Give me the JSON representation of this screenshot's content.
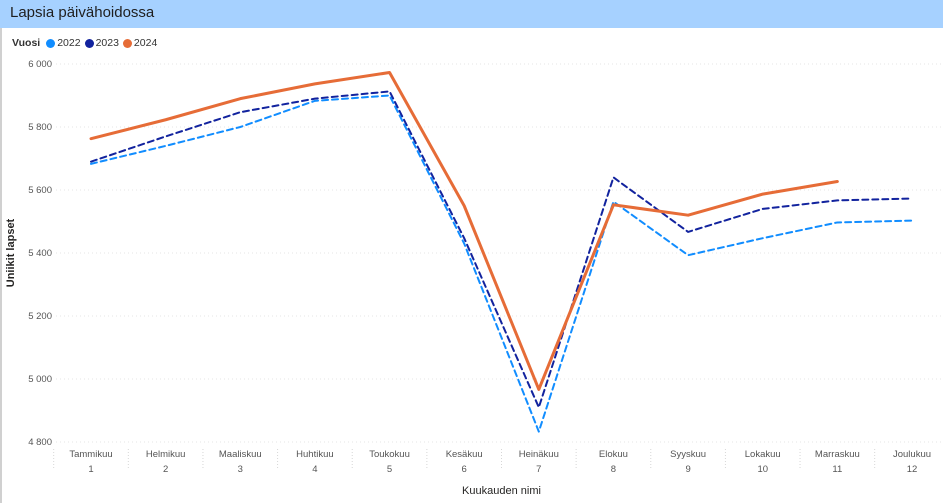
{
  "title": "Lapsia päivähoidossa",
  "legend": {
    "title": "Vuosi",
    "items": [
      {
        "label": "2022",
        "color": "#118dff"
      },
      {
        "label": "2023",
        "color": "#12239e"
      },
      {
        "label": "2024",
        "color": "#e66c37"
      }
    ]
  },
  "chart_data": {
    "type": "line",
    "title": "Lapsia päivähoidossa",
    "xlabel": "Kuukauden nimi",
    "ylabel": "Uniikit lapset",
    "ylim": [
      4800,
      6000
    ],
    "yticks": [
      4800,
      5000,
      5200,
      5400,
      5600,
      5800,
      6000
    ],
    "ytick_labels": [
      "4 800",
      "5 000",
      "5 200",
      "5 400",
      "5 600",
      "5 800",
      "6 000"
    ],
    "grid": true,
    "legend_position": "top-left",
    "categories": [
      "Tammikuu",
      "Helmikuu",
      "Maaliskuu",
      "Huhtikuu",
      "Toukokuu",
      "Kesäkuu",
      "Heinäkuu",
      "Elokuu",
      "Syyskuu",
      "Lokakuu",
      "Marraskuu",
      "Joulukuu"
    ],
    "category_numbers": [
      "1",
      "2",
      "3",
      "4",
      "5",
      "6",
      "7",
      "8",
      "9",
      "10",
      "11",
      "12"
    ],
    "series": [
      {
        "name": "2022",
        "color": "#118dff",
        "dash": "dashed",
        "values": [
          5683,
          5740,
          5800,
          5883,
          5900,
          5430,
          4833,
          5563,
          5393,
          5447,
          5497,
          5503
        ]
      },
      {
        "name": "2023",
        "color": "#12239e",
        "dash": "dashed",
        "values": [
          5690,
          5770,
          5847,
          5890,
          5913,
          5447,
          4910,
          5640,
          5467,
          5540,
          5567,
          5573
        ]
      },
      {
        "name": "2024",
        "color": "#e66c37",
        "dash": "solid",
        "values": [
          5763,
          5823,
          5890,
          5937,
          5973,
          5550,
          4967,
          5553,
          5520,
          5587,
          5627,
          null
        ]
      }
    ]
  }
}
